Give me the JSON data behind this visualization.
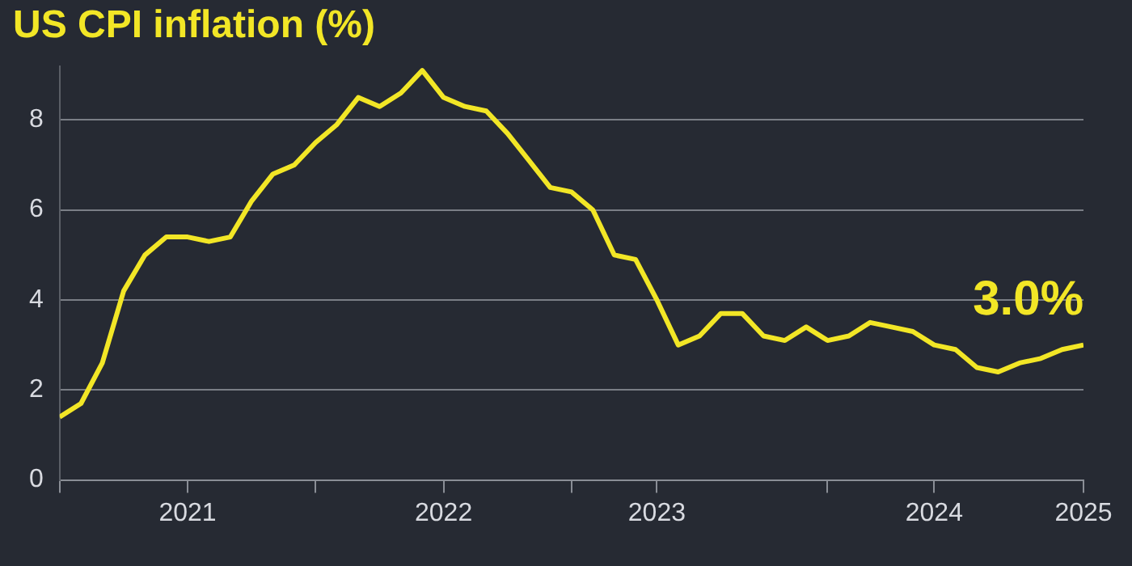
{
  "chart_data": {
    "type": "line",
    "title": "US CPI inflation (%)",
    "x": [
      "2021-01",
      "2021-02",
      "2021-03",
      "2021-04",
      "2021-05",
      "2021-06",
      "2021-07",
      "2021-08",
      "2021-09",
      "2021-10",
      "2021-11",
      "2021-12",
      "2022-01",
      "2022-02",
      "2022-03",
      "2022-04",
      "2022-05",
      "2022-06",
      "2022-07",
      "2022-08",
      "2022-09",
      "2022-10",
      "2022-11",
      "2022-12",
      "2023-01",
      "2023-02",
      "2023-03",
      "2023-04",
      "2023-05",
      "2023-06",
      "2023-07",
      "2023-08",
      "2023-09",
      "2023-10",
      "2023-11",
      "2023-12",
      "2024-01",
      "2024-02",
      "2024-03",
      "2024-04",
      "2024-05",
      "2024-06",
      "2024-07",
      "2024-08",
      "2024-09",
      "2024-10",
      "2024-11",
      "2024-12",
      "2025-01"
    ],
    "series": [
      {
        "color": "#f2e626",
        "values": [
          1.4,
          1.7,
          2.6,
          4.2,
          5.0,
          5.4,
          5.4,
          5.3,
          5.4,
          6.2,
          6.8,
          7.0,
          7.5,
          7.9,
          8.5,
          8.3,
          8.6,
          9.1,
          8.5,
          8.3,
          8.2,
          7.7,
          7.1,
          6.5,
          6.4,
          6.0,
          5.0,
          4.9,
          4.0,
          3.0,
          3.2,
          3.7,
          3.7,
          3.2,
          3.1,
          3.4,
          3.1,
          3.2,
          3.5,
          3.4,
          3.3,
          3.0,
          2.9,
          2.5,
          2.4,
          2.6,
          2.7,
          2.9,
          3.0
        ]
      }
    ],
    "xlim": [
      "2021-01",
      "2025-01"
    ],
    "xticks": [
      {
        "value": "2021-01",
        "label": null
      },
      {
        "value": "2021-07",
        "label": "2021"
      },
      {
        "value": "2022-01",
        "label": null
      },
      {
        "value": "2022-07",
        "label": "2022"
      },
      {
        "value": "2023-01",
        "label": null
      },
      {
        "value": "2023-05",
        "label": "2023"
      },
      {
        "value": "2024-01",
        "label": null
      },
      {
        "value": "2024-06",
        "label": "2024"
      },
      {
        "value": "2025-01",
        "label": "2025"
      }
    ],
    "ylim": [
      0,
      9.2
    ],
    "yticks": [
      0,
      2,
      4,
      6,
      8
    ],
    "grid": "y",
    "legend": false,
    "marker": "none",
    "line_style": "solid",
    "annotations": [
      {
        "text": "3.0%",
        "x": "2025-01",
        "y": 3.0
      }
    ]
  }
}
